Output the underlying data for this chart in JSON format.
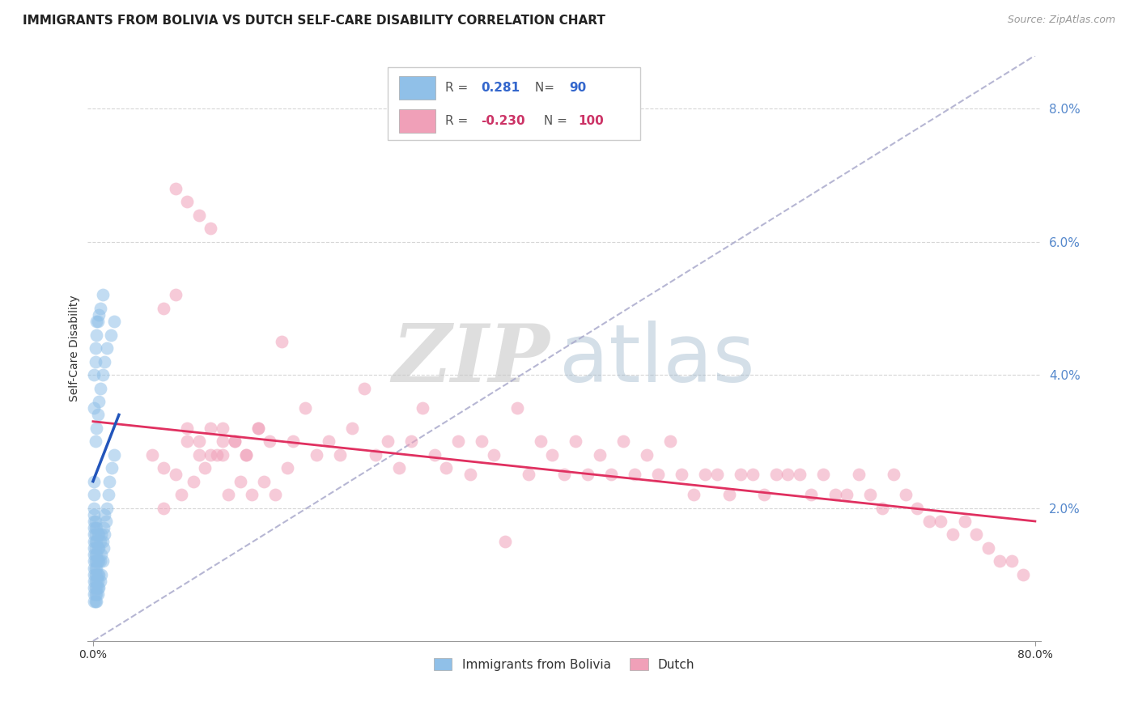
{
  "title": "IMMIGRANTS FROM BOLIVIA VS DUTCH SELF-CARE DISABILITY CORRELATION CHART",
  "source": "Source: ZipAtlas.com",
  "ylabel": "Self-Care Disability",
  "xlim": [
    -0.005,
    0.805
  ],
  "ylim": [
    0.0,
    0.088
  ],
  "ytick_vals": [
    0.02,
    0.04,
    0.06,
    0.08
  ],
  "ytick_labels": [
    "2.0%",
    "4.0%",
    "6.0%",
    "8.0%"
  ],
  "xtick_vals": [
    0.0,
    0.8
  ],
  "xtick_labels": [
    "0.0%",
    "80.0%"
  ],
  "blue_R": 0.281,
  "blue_N": 90,
  "pink_R": -0.23,
  "pink_N": 100,
  "blue_color": "#90C0E8",
  "pink_color": "#F0A0B8",
  "blue_line_color": "#2255BB",
  "pink_line_color": "#E03060",
  "diagonal_color": "#AAAACC",
  "legend_blue_label": "Immigrants from Bolivia",
  "legend_pink_label": "Dutch",
  "blue_scatter_x": [
    0.001,
    0.001,
    0.001,
    0.001,
    0.001,
    0.001,
    0.001,
    0.001,
    0.001,
    0.001,
    0.001,
    0.001,
    0.001,
    0.001,
    0.001,
    0.001,
    0.001,
    0.002,
    0.002,
    0.002,
    0.002,
    0.002,
    0.002,
    0.002,
    0.002,
    0.002,
    0.002,
    0.002,
    0.002,
    0.002,
    0.003,
    0.003,
    0.003,
    0.003,
    0.003,
    0.003,
    0.003,
    0.003,
    0.003,
    0.003,
    0.004,
    0.004,
    0.004,
    0.004,
    0.004,
    0.004,
    0.004,
    0.005,
    0.005,
    0.005,
    0.005,
    0.005,
    0.006,
    0.006,
    0.006,
    0.007,
    0.007,
    0.007,
    0.008,
    0.008,
    0.009,
    0.009,
    0.01,
    0.01,
    0.011,
    0.012,
    0.013,
    0.014,
    0.016,
    0.018,
    0.002,
    0.003,
    0.004,
    0.005,
    0.006,
    0.008,
    0.01,
    0.012,
    0.015,
    0.018,
    0.001,
    0.001,
    0.002,
    0.002,
    0.003,
    0.003,
    0.004,
    0.005,
    0.006,
    0.008
  ],
  "blue_scatter_y": [
    0.006,
    0.007,
    0.008,
    0.009,
    0.01,
    0.011,
    0.012,
    0.013,
    0.014,
    0.015,
    0.016,
    0.017,
    0.018,
    0.019,
    0.02,
    0.022,
    0.024,
    0.006,
    0.007,
    0.008,
    0.009,
    0.01,
    0.011,
    0.012,
    0.013,
    0.014,
    0.015,
    0.016,
    0.017,
    0.018,
    0.006,
    0.007,
    0.008,
    0.009,
    0.01,
    0.011,
    0.012,
    0.013,
    0.015,
    0.017,
    0.007,
    0.008,
    0.009,
    0.01,
    0.012,
    0.014,
    0.016,
    0.008,
    0.01,
    0.012,
    0.014,
    0.016,
    0.009,
    0.012,
    0.015,
    0.01,
    0.013,
    0.016,
    0.012,
    0.015,
    0.014,
    0.017,
    0.016,
    0.019,
    0.018,
    0.02,
    0.022,
    0.024,
    0.026,
    0.028,
    0.03,
    0.032,
    0.034,
    0.036,
    0.038,
    0.04,
    0.042,
    0.044,
    0.046,
    0.048,
    0.035,
    0.04,
    0.042,
    0.044,
    0.046,
    0.048,
    0.048,
    0.049,
    0.05,
    0.052
  ],
  "pink_scatter_x": [
    0.05,
    0.06,
    0.07,
    0.08,
    0.09,
    0.1,
    0.11,
    0.12,
    0.13,
    0.14,
    0.06,
    0.07,
    0.08,
    0.09,
    0.1,
    0.11,
    0.12,
    0.13,
    0.14,
    0.15,
    0.16,
    0.17,
    0.18,
    0.19,
    0.2,
    0.21,
    0.22,
    0.23,
    0.24,
    0.25,
    0.26,
    0.27,
    0.28,
    0.29,
    0.3,
    0.31,
    0.32,
    0.33,
    0.34,
    0.35,
    0.36,
    0.37,
    0.38,
    0.39,
    0.4,
    0.41,
    0.42,
    0.43,
    0.44,
    0.45,
    0.46,
    0.47,
    0.48,
    0.49,
    0.5,
    0.51,
    0.52,
    0.53,
    0.54,
    0.55,
    0.56,
    0.57,
    0.58,
    0.59,
    0.6,
    0.61,
    0.62,
    0.63,
    0.64,
    0.65,
    0.66,
    0.67,
    0.68,
    0.69,
    0.7,
    0.71,
    0.72,
    0.73,
    0.74,
    0.75,
    0.76,
    0.77,
    0.78,
    0.79,
    0.07,
    0.08,
    0.09,
    0.1,
    0.11,
    0.06,
    0.075,
    0.085,
    0.095,
    0.105,
    0.115,
    0.125,
    0.135,
    0.145,
    0.155,
    0.165
  ],
  "pink_scatter_y": [
    0.028,
    0.026,
    0.068,
    0.066,
    0.064,
    0.062,
    0.028,
    0.03,
    0.028,
    0.032,
    0.05,
    0.052,
    0.032,
    0.03,
    0.028,
    0.032,
    0.03,
    0.028,
    0.032,
    0.03,
    0.045,
    0.03,
    0.035,
    0.028,
    0.03,
    0.028,
    0.032,
    0.038,
    0.028,
    0.03,
    0.026,
    0.03,
    0.035,
    0.028,
    0.026,
    0.03,
    0.025,
    0.03,
    0.028,
    0.015,
    0.035,
    0.025,
    0.03,
    0.028,
    0.025,
    0.03,
    0.025,
    0.028,
    0.025,
    0.03,
    0.025,
    0.028,
    0.025,
    0.03,
    0.025,
    0.022,
    0.025,
    0.025,
    0.022,
    0.025,
    0.025,
    0.022,
    0.025,
    0.025,
    0.025,
    0.022,
    0.025,
    0.022,
    0.022,
    0.025,
    0.022,
    0.02,
    0.025,
    0.022,
    0.02,
    0.018,
    0.018,
    0.016,
    0.018,
    0.016,
    0.014,
    0.012,
    0.012,
    0.01,
    0.025,
    0.03,
    0.028,
    0.032,
    0.03,
    0.02,
    0.022,
    0.024,
    0.026,
    0.028,
    0.022,
    0.024,
    0.022,
    0.024,
    0.022,
    0.026
  ]
}
